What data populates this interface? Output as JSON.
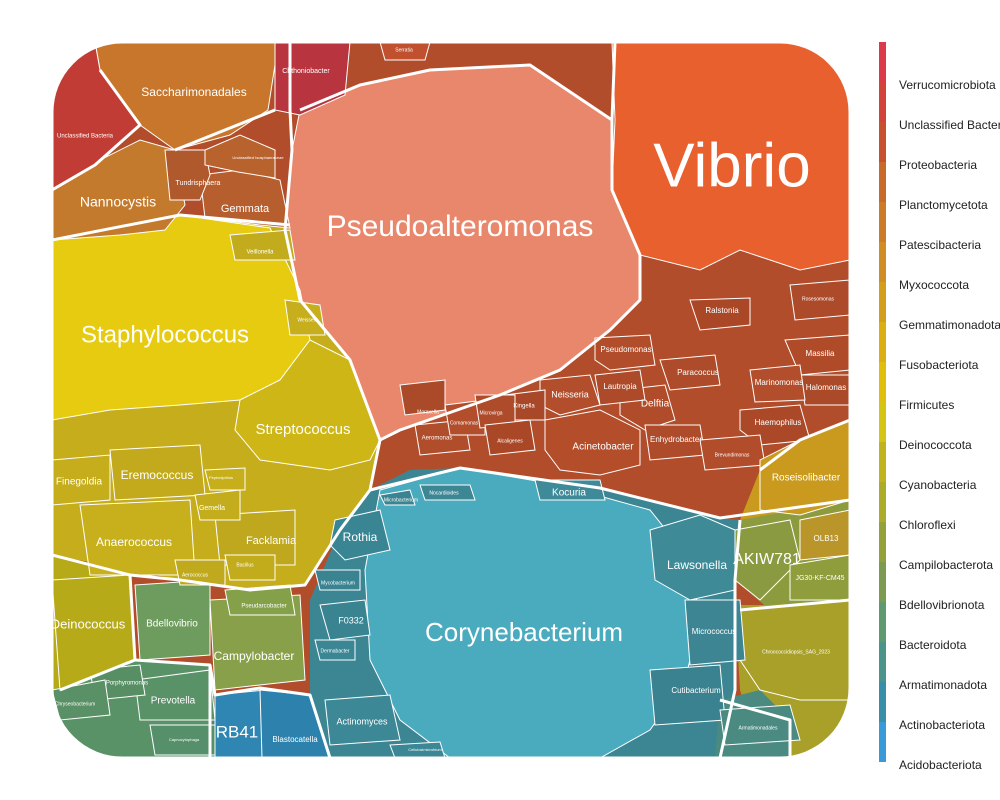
{
  "chart_data": {
    "type": "voronoi-treemap",
    "title": "",
    "legend": {
      "placement": "right",
      "entries": [
        {
          "name": "Verrucomicrobiota",
          "color": "#dc3a4a"
        },
        {
          "name": "Unclassified Bacteria",
          "color": "#d2443a"
        },
        {
          "name": "Proteobacteria",
          "color": "#c9502f"
        },
        {
          "name": "Planctomycetota",
          "color": "#c86a2a"
        },
        {
          "name": "Patescibacteria",
          "color": "#cc7b28"
        },
        {
          "name": "Myxococcota",
          "color": "#d08d24"
        },
        {
          "name": "Gemmatimonadota",
          "color": "#d59d1c"
        },
        {
          "name": "Fusobacteriota",
          "color": "#dcae12"
        },
        {
          "name": "Firmicutes",
          "color": "#e1bd0c"
        },
        {
          "name": "Deinococcota",
          "color": "#d5c414"
        },
        {
          "name": "Cyanobacteria",
          "color": "#c0b41e"
        },
        {
          "name": "Chloroflexi",
          "color": "#acab2a"
        },
        {
          "name": "Campilobacterota",
          "color": "#94a03a"
        },
        {
          "name": "Bdellovibrionota",
          "color": "#7c9a50"
        },
        {
          "name": "Bacteroidota",
          "color": "#5e9a6e"
        },
        {
          "name": "Armatimonadota",
          "color": "#4a948a"
        },
        {
          "name": "Actinobacteriota",
          "color": "#3a8fa8"
        },
        {
          "name": "Acidobacteriota",
          "color": "#3a9ad8"
        }
      ]
    },
    "cells": [
      {
        "label": "Vibrio",
        "phylum": "Proteobacteria",
        "color": "#e8602e"
      },
      {
        "label": "Pseudoalteromonas",
        "phylum": "Proteobacteria",
        "color": "#e8876b"
      },
      {
        "label": "Corynebacterium",
        "phylum": "Actinobacteriota",
        "color": "#4aabbf"
      },
      {
        "label": "Staphylococcus",
        "phylum": "Firmicutes",
        "color": "#e6cb10"
      },
      {
        "label": "Streptococcus",
        "phylum": "Firmicutes",
        "color": "#cdb615"
      },
      {
        "label": "Saccharimonadales",
        "phylum": "Patescibacteria",
        "color": "#c8762c"
      },
      {
        "label": "Nannocystis",
        "phylum": "Myxococcota",
        "color": "#c47a2c"
      },
      {
        "label": "Gemmata",
        "phylum": "Planctomycetota",
        "color": "#b65e2e"
      },
      {
        "label": "Tundrisphaera",
        "phylum": "Planctomycetota",
        "color": "#b0592c"
      },
      {
        "label": "Unclassified Isosphaeraceae",
        "phylum": "Planctomycetota",
        "color": "#b8622e"
      },
      {
        "label": "Chthoniobacter",
        "phylum": "Verrucomicrobiota",
        "color": "#b8343f"
      },
      {
        "label": "Unclassified Bacteria",
        "phylum": "Unclassified Bacteria",
        "color": "#c03c35"
      },
      {
        "label": "Serratia",
        "phylum": "Proteobacteria",
        "color": "#c0502e"
      },
      {
        "label": "Acinetobacter",
        "phylum": "Proteobacteria",
        "color": "#b34d2a"
      },
      {
        "label": "Delftia",
        "phylum": "Proteobacteria",
        "color": "#b04c2a"
      },
      {
        "label": "Neisseria",
        "phylum": "Proteobacteria",
        "color": "#b24e2b"
      },
      {
        "label": "Lautropia",
        "phylum": "Proteobacteria",
        "color": "#ad4a29"
      },
      {
        "label": "Pseudomonas",
        "phylum": "Proteobacteria",
        "color": "#b14d2b"
      },
      {
        "label": "Haemophilus",
        "phylum": "Proteobacteria",
        "color": "#aa4828"
      },
      {
        "label": "Massilia",
        "phylum": "Proteobacteria",
        "color": "#b04b2a"
      },
      {
        "label": "Halomonas",
        "phylum": "Proteobacteria",
        "color": "#ab4a29"
      },
      {
        "label": "Marinomonas",
        "phylum": "Proteobacteria",
        "color": "#b24e2c"
      },
      {
        "label": "Paracoccus",
        "phylum": "Proteobacteria",
        "color": "#ae4b2a"
      },
      {
        "label": "Ralstonia",
        "phylum": "Proteobacteria",
        "color": "#a94727"
      },
      {
        "label": "Enhydrobacter",
        "phylum": "Proteobacteria",
        "color": "#ad4b2a"
      },
      {
        "label": "Aeromonas",
        "phylum": "Proteobacteria",
        "color": "#b04d2b"
      },
      {
        "label": "Kingella",
        "phylum": "Proteobacteria",
        "color": "#a94828"
      },
      {
        "label": "Moraxella",
        "phylum": "Proteobacteria",
        "color": "#ab4a29"
      },
      {
        "label": "Comamonas",
        "phylum": "Proteobacteria",
        "color": "#b24e2c"
      },
      {
        "label": "Microvirga",
        "phylum": "Proteobacteria",
        "color": "#ae4b2a"
      },
      {
        "label": "Alcaligenes",
        "phylum": "Proteobacteria",
        "color": "#a94727"
      },
      {
        "label": "Brevundimonas",
        "phylum": "Proteobacteria",
        "color": "#b14d2b"
      },
      {
        "label": "Rosesomonas",
        "phylum": "Proteobacteria",
        "color": "#ac4a29"
      },
      {
        "label": "Roseisolibacter",
        "phylum": "Gemmatimonadota",
        "color": "#c99a1e"
      },
      {
        "label": "AKIW781",
        "phylum": "Chloroflexi",
        "color": "#8a9a40"
      },
      {
        "label": "JG30-KF-CM45",
        "phylum": "Chloroflexi",
        "color": "#8f9d3c"
      },
      {
        "label": "OLB13",
        "phylum": "Gemmatimonadota",
        "color": "#b9952a"
      },
      {
        "label": "Chroococcidiopsis_SAG_2023",
        "phylum": "Cyanobacteria",
        "color": "#a8a028"
      },
      {
        "label": "Lawsonella",
        "phylum": "Actinobacteriota",
        "color": "#3e8a97"
      },
      {
        "label": "Micrococcus",
        "phylum": "Actinobacteriota",
        "color": "#3d8593"
      },
      {
        "label": "Cutibacterium",
        "phylum": "Actinobacteriota",
        "color": "#3a8290"
      },
      {
        "label": "Kocuria",
        "phylum": "Actinobacteriota",
        "color": "#3e8a98"
      },
      {
        "label": "Rothia",
        "phylum": "Actinobacteriota",
        "color": "#3a8594"
      },
      {
        "label": "Actinomyces",
        "phylum": "Actinobacteriota",
        "color": "#3c8896"
      },
      {
        "label": "F0332",
        "phylum": "Actinobacteriota",
        "color": "#3a8492"
      },
      {
        "label": "Nocardioides",
        "phylum": "Actinobacteriota",
        "color": "#3d8795"
      },
      {
        "label": "Mycobacterium",
        "phylum": "Actinobacteriota",
        "color": "#3a8391"
      },
      {
        "label": "Dermabacter",
        "phylum": "Actinobacteriota",
        "color": "#3b8694"
      },
      {
        "label": "Microbacterium",
        "phylum": "Actinobacteriota",
        "color": "#3a8391"
      },
      {
        "label": "Cellulosimicrobium",
        "phylum": "Actinobacteriota",
        "color": "#3c8795"
      },
      {
        "label": "Armatimonadales",
        "phylum": "Armatimonadota",
        "color": "#4a8a80"
      },
      {
        "label": "RB41",
        "phylum": "Acidobacteriota",
        "color": "#2f86b2"
      },
      {
        "label": "Blastocatella",
        "phylum": "Acidobacteriota",
        "color": "#2d82ad"
      },
      {
        "label": "Prevotella",
        "phylum": "Bacteroidota",
        "color": "#5a9268"
      },
      {
        "label": "Porphyromonas",
        "phylum": "Bacteroidota",
        "color": "#578e64"
      },
      {
        "label": "Chryseobacterium",
        "phylum": "Bacteroidota",
        "color": "#5a9066"
      },
      {
        "label": "Capnocytophaga",
        "phylum": "Bacteroidota",
        "color": "#56906a"
      },
      {
        "label": "Bdellovibrio",
        "phylum": "Bdellovibrionota",
        "color": "#6e9b5e"
      },
      {
        "label": "Campylobacter",
        "phylum": "Campilobacterota",
        "color": "#88a04a"
      },
      {
        "label": "Pseudarcobacter",
        "phylum": "Campilobacterota",
        "color": "#84a048"
      },
      {
        "label": "Deinococcus",
        "phylum": "Deinococcota",
        "color": "#b6aa18"
      },
      {
        "label": "Finegoldia",
        "phylum": "Firmicutes",
        "color": "#c5ad1c"
      },
      {
        "label": "Eremococcus",
        "phylum": "Firmicutes",
        "color": "#c2aa1c"
      },
      {
        "label": "Anaerococcus",
        "phylum": "Firmicutes",
        "color": "#c7b01b"
      },
      {
        "label": "Facklamia",
        "phylum": "Firmicutes",
        "color": "#bfa81d"
      },
      {
        "label": "Gemella",
        "phylum": "Firmicutes",
        "color": "#c4ad1c"
      },
      {
        "label": "Veillonella",
        "phylum": "Firmicutes",
        "color": "#c2ab1d"
      },
      {
        "label": "Weissella",
        "phylum": "Firmicutes",
        "color": "#c6ae1c"
      },
      {
        "label": "Aerococcus",
        "phylum": "Firmicutes",
        "color": "#c0a91d"
      },
      {
        "label": "Bacillus",
        "phylum": "Firmicutes",
        "color": "#c3ac1c"
      },
      {
        "label": "Peptoniphilus",
        "phylum": "Firmicutes",
        "color": "#c7af1b"
      }
    ]
  }
}
